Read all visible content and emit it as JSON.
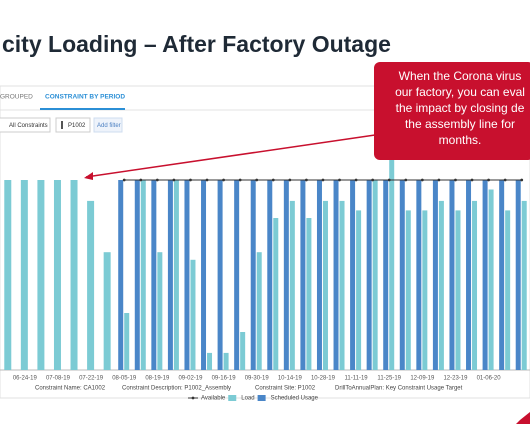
{
  "header": {
    "title": "city Loading – After Factory Outage"
  },
  "tabs": [
    "GROUPED",
    "CONSTRAINT BY PERIOD"
  ],
  "filters": [
    "All Constraints",
    "P1002",
    "Add filter"
  ],
  "callout": [
    "When the Corona virus",
    "our factory, you can eval",
    "the impact by closing de",
    "the assembly line for",
    "months."
  ],
  "chart_data": {
    "type": "bar",
    "categories": [
      null,
      "06-24-19",
      null,
      "07-08-19",
      null,
      "07-22-19",
      null,
      "08-05-19",
      null,
      "08-19-19",
      null,
      "09-02-19",
      null,
      "09-16-19",
      null,
      "09-30-19",
      null,
      "10-14-19",
      null,
      "10-28-19",
      null,
      "11-11-19",
      null,
      "11-25-19",
      null,
      "12-09-19",
      null,
      "12-23-19",
      null,
      "01-06-20",
      null,
      null
    ],
    "ylim": [
      0,
      120
    ],
    "series": [
      {
        "name": "Available",
        "type": "line",
        "color": "#333333",
        "values": [
          null,
          null,
          null,
          null,
          null,
          null,
          null,
          100,
          100,
          100,
          100,
          100,
          100,
          100,
          100,
          100,
          100,
          100,
          100,
          100,
          100,
          100,
          100,
          100,
          100,
          100,
          100,
          100,
          100,
          100,
          100,
          100
        ]
      },
      {
        "name": "Load",
        "type": "bar",
        "color": "#7ccbd4",
        "values": [
          100,
          100,
          100,
          100,
          100,
          89,
          62,
          30,
          100,
          62,
          100,
          58,
          9,
          9,
          20,
          62,
          80,
          89,
          80,
          89,
          89,
          84,
          100,
          113,
          84,
          84,
          89,
          84,
          89,
          95,
          84,
          89
        ]
      },
      {
        "name": "Scheduled Usage",
        "type": "bar",
        "color": "#4a86c8",
        "values": [
          null,
          null,
          null,
          null,
          null,
          null,
          null,
          100,
          100,
          100,
          100,
          100,
          100,
          100,
          100,
          100,
          100,
          100,
          100,
          100,
          100,
          100,
          100,
          100,
          100,
          100,
          100,
          100,
          100,
          100,
          100,
          100
        ]
      }
    ]
  },
  "footer": [
    "Constraint Name: CA1002",
    "Constraint Description: P1002_Assembly",
    "Constraint Site: P1002",
    "DrillToAnnualPlan: Key Constraint Usage Target"
  ]
}
